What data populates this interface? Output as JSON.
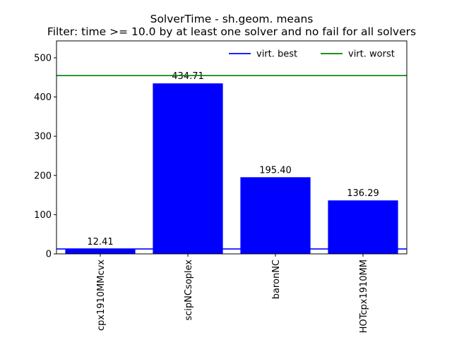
{
  "chart_data": {
    "type": "bar",
    "title": "SolverTime - sh.geom. means",
    "subtitle": "Filter: time >= 10.0 by at least one solver and no fail for all solvers",
    "categories": [
      "cpx1910MMcvx",
      "scipNCsoplex",
      "baronNC",
      "HOTcpx1910MM"
    ],
    "values": [
      12.41,
      434.71,
      195.4,
      136.29
    ],
    "value_labels": [
      "12.41",
      "434.71",
      "195.40",
      "136.29"
    ],
    "bar_color": "#0000ff",
    "ylim": [
      0,
      543
    ],
    "yticks": [
      0,
      100,
      200,
      300,
      400,
      500
    ],
    "reference_lines": [
      {
        "name": "virt. best",
        "value": 12.41,
        "color": "#0000ff"
      },
      {
        "name": "virt. worst",
        "value": 454.6,
        "color": "#008000"
      }
    ],
    "legend_position": "top-right",
    "grid": false
  }
}
